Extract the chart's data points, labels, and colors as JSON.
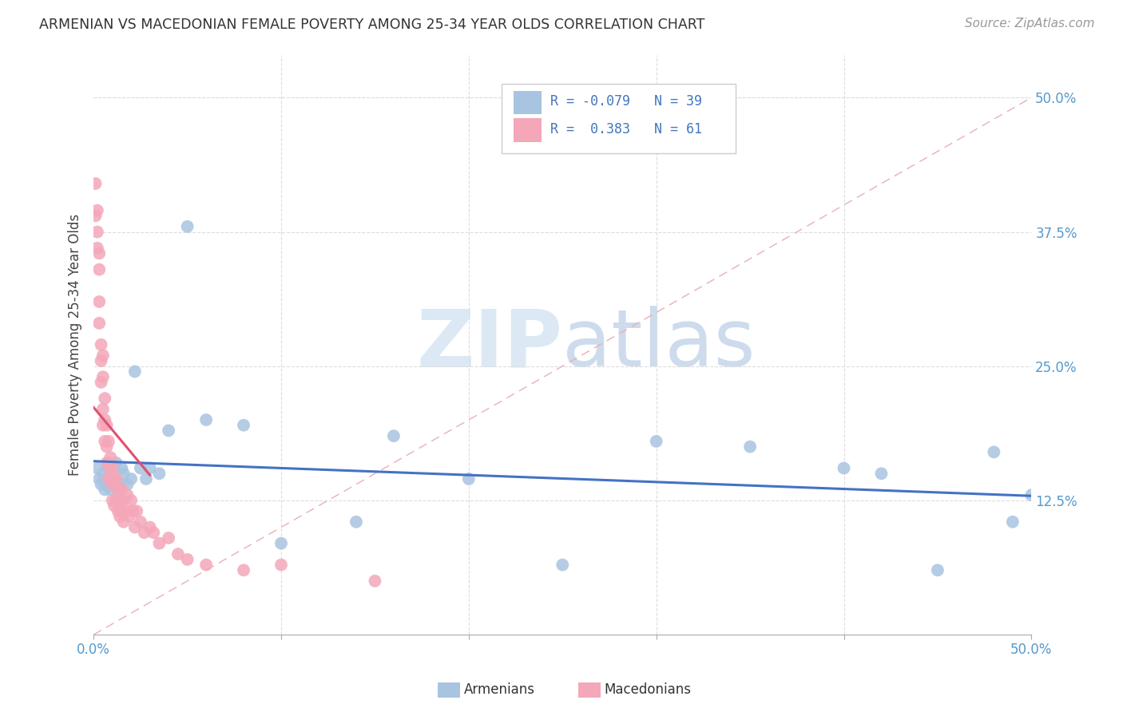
{
  "title": "ARMENIAN VS MACEDONIAN FEMALE POVERTY AMONG 25-34 YEAR OLDS CORRELATION CHART",
  "source": "Source: ZipAtlas.com",
  "ylabel": "Female Poverty Among 25-34 Year Olds",
  "xlim": [
    0.0,
    0.5
  ],
  "ylim": [
    0.0,
    0.54
  ],
  "armenian_color": "#a8c4e0",
  "macedonian_color": "#f4a7b9",
  "armenian_line_color": "#4472c4",
  "macedonian_line_color": "#e05070",
  "background_color": "#ffffff",
  "arm_x": [
    0.002,
    0.003,
    0.004,
    0.005,
    0.006,
    0.007,
    0.008,
    0.009,
    0.01,
    0.011,
    0.012,
    0.013,
    0.014,
    0.015,
    0.016,
    0.018,
    0.02,
    0.022,
    0.025,
    0.028,
    0.03,
    0.035,
    0.04,
    0.05,
    0.06,
    0.08,
    0.1,
    0.14,
    0.16,
    0.2,
    0.25,
    0.3,
    0.35,
    0.4,
    0.45,
    0.48,
    0.49,
    0.5,
    0.42
  ],
  "arm_y": [
    0.155,
    0.145,
    0.14,
    0.15,
    0.135,
    0.14,
    0.155,
    0.135,
    0.145,
    0.14,
    0.16,
    0.135,
    0.14,
    0.155,
    0.15,
    0.14,
    0.145,
    0.245,
    0.155,
    0.145,
    0.155,
    0.15,
    0.19,
    0.38,
    0.2,
    0.195,
    0.085,
    0.105,
    0.185,
    0.145,
    0.065,
    0.18,
    0.175,
    0.155,
    0.06,
    0.17,
    0.105,
    0.13,
    0.15
  ],
  "mac_x": [
    0.001,
    0.001,
    0.002,
    0.002,
    0.002,
    0.003,
    0.003,
    0.003,
    0.003,
    0.004,
    0.004,
    0.004,
    0.005,
    0.005,
    0.005,
    0.005,
    0.006,
    0.006,
    0.006,
    0.007,
    0.007,
    0.007,
    0.008,
    0.008,
    0.008,
    0.009,
    0.009,
    0.01,
    0.01,
    0.01,
    0.011,
    0.011,
    0.012,
    0.012,
    0.013,
    0.013,
    0.014,
    0.014,
    0.015,
    0.015,
    0.016,
    0.016,
    0.017,
    0.018,
    0.019,
    0.02,
    0.021,
    0.022,
    0.023,
    0.025,
    0.027,
    0.03,
    0.032,
    0.035,
    0.04,
    0.045,
    0.05,
    0.06,
    0.08,
    0.1,
    0.15
  ],
  "mac_y": [
    0.39,
    0.42,
    0.375,
    0.395,
    0.36,
    0.34,
    0.355,
    0.31,
    0.29,
    0.27,
    0.255,
    0.235,
    0.26,
    0.24,
    0.21,
    0.195,
    0.22,
    0.2,
    0.18,
    0.195,
    0.175,
    0.16,
    0.18,
    0.16,
    0.145,
    0.165,
    0.15,
    0.155,
    0.14,
    0.125,
    0.145,
    0.12,
    0.145,
    0.125,
    0.135,
    0.115,
    0.125,
    0.11,
    0.135,
    0.115,
    0.125,
    0.105,
    0.115,
    0.13,
    0.11,
    0.125,
    0.115,
    0.1,
    0.115,
    0.105,
    0.095,
    0.1,
    0.095,
    0.085,
    0.09,
    0.075,
    0.07,
    0.065,
    0.06,
    0.065,
    0.05
  ]
}
